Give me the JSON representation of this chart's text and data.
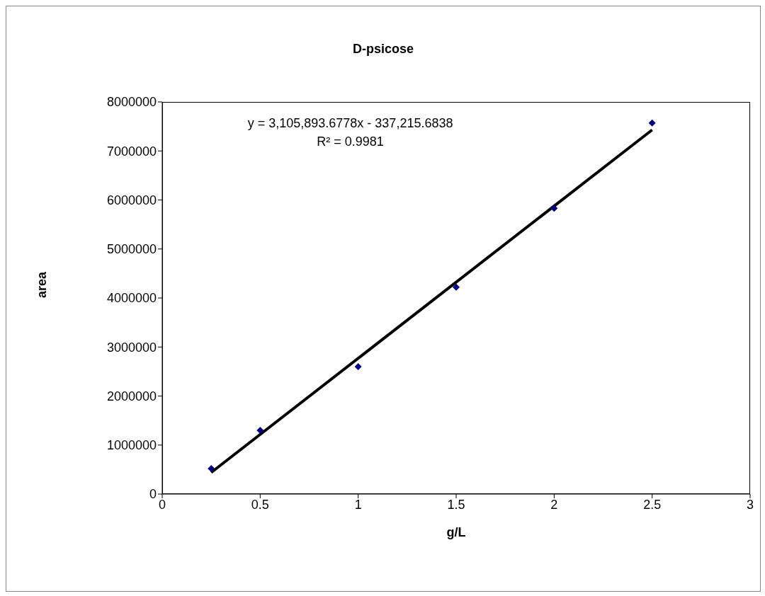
{
  "chart_data": {
    "type": "scatter",
    "title": "D-psicose",
    "xlabel": "g/L",
    "ylabel": "area",
    "annotations": [
      "y = 3,105,893.6778x - 337,215.6838",
      "R² = 0.9981"
    ],
    "series": [
      {
        "color": "#000080",
        "marker": "diamond",
        "x": [
          0.25,
          0.5,
          1,
          1.5,
          2,
          2.5
        ],
        "values": [
          520000,
          1300000,
          2600000,
          4220000,
          5830000,
          7570000
        ]
      },
      {
        "type": "line",
        "color": "#000000",
        "marker": "none",
        "line_style": "solid",
        "x": [
          0.25,
          2.5
        ],
        "values": [
          440000,
          7430000
        ]
      }
    ],
    "xlim": [
      0,
      3
    ],
    "xticks": [
      0,
      0.5,
      1,
      1.5,
      2,
      2.5,
      3
    ],
    "ylim": [
      0,
      8000000
    ],
    "yticks": [
      0,
      1000000,
      2000000,
      3000000,
      4000000,
      5000000,
      6000000,
      7000000,
      8000000
    ],
    "grid": false
  }
}
